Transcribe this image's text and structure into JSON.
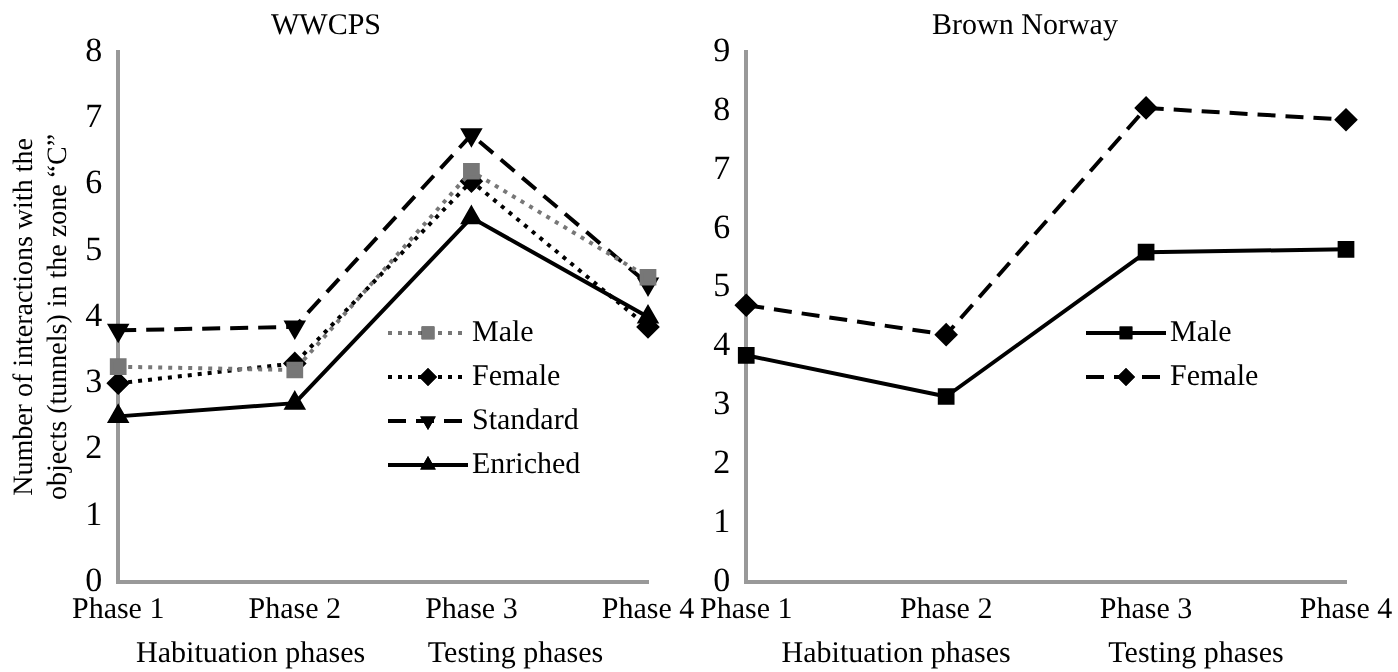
{
  "chart_data": [
    {
      "type": "line",
      "title": "WWCPS",
      "ylabel": "Number of interactions with the objects (tunnels) in the zone “C”",
      "categories": [
        "Phase 1",
        "Phase 2",
        "Phase 3",
        "Phase 4"
      ],
      "ylim": [
        0,
        8
      ],
      "yticks": [
        0,
        1,
        2,
        3,
        4,
        5,
        6,
        7,
        8
      ],
      "grid": false,
      "legend": "right",
      "annotations": [
        "Habituation phases",
        "Testing phases"
      ],
      "series": [
        {
          "name": "Male",
          "color": "#777777",
          "marker": "square",
          "line_style": "dotted",
          "values": [
            3.25,
            3.2,
            6.2,
            4.6
          ]
        },
        {
          "name": "Female",
          "color": "#000000",
          "marker": "diamond",
          "line_style": "dotted",
          "values": [
            3.0,
            3.3,
            6.05,
            3.85
          ]
        },
        {
          "name": "Standard",
          "color": "#000000",
          "marker": "triangle-down",
          "line_style": "dashed",
          "values": [
            3.8,
            3.85,
            6.75,
            4.5
          ]
        },
        {
          "name": "Enriched",
          "color": "#000000",
          "marker": "triangle",
          "line_style": "solid",
          "values": [
            2.5,
            2.7,
            5.5,
            4.0
          ]
        }
      ]
    },
    {
      "type": "line",
      "title": "Brown Norway",
      "categories": [
        "Phase 1",
        "Phase 2",
        "Phase 3",
        "Phase 4"
      ],
      "ylim": [
        0,
        9
      ],
      "yticks": [
        0,
        1,
        2,
        3,
        4,
        5,
        6,
        7,
        8,
        9
      ],
      "grid": false,
      "legend": "right",
      "annotations": [
        "Habituation phases",
        "Testing phases"
      ],
      "series": [
        {
          "name": "Male",
          "color": "#000000",
          "marker": "square",
          "line_style": "solid",
          "values": [
            3.85,
            3.15,
            5.6,
            5.65
          ]
        },
        {
          "name": "Female",
          "color": "#000000",
          "marker": "diamond",
          "line_style": "dashed",
          "values": [
            4.7,
            4.2,
            8.05,
            7.85
          ]
        }
      ]
    }
  ]
}
